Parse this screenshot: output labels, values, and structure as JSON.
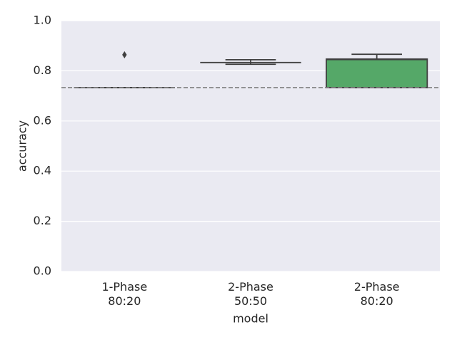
{
  "chart_data": {
    "type": "box",
    "x_label": "model",
    "y_label": "accuracy",
    "categories": [
      [
        "1-Phase",
        "80:20"
      ],
      [
        "2-Phase",
        "50:50"
      ],
      [
        "2-Phase",
        "80:20"
      ]
    ],
    "colors": [
      "#4c72b0",
      "#dd8452",
      "#55a868"
    ],
    "boxes": [
      {
        "whislo": 0.733,
        "q1": 0.733,
        "med": 0.733,
        "q3": 0.733,
        "whishi": 0.733,
        "fliers": [
          0.864
        ]
      },
      {
        "whislo": 0.826,
        "q1": 0.833,
        "med": 0.833,
        "q3": 0.833,
        "whishi": 0.844,
        "fliers": []
      },
      {
        "whislo": 0.733,
        "q1": 0.733,
        "med": 0.845,
        "q3": 0.847,
        "whishi": 0.866,
        "fliers": []
      }
    ],
    "reference_line": 0.733,
    "ylim": [
      0,
      1
    ],
    "yticks": [
      {
        "value": 0,
        "label": "0.0"
      },
      {
        "value": 0.2,
        "label": "0.2"
      },
      {
        "value": 0.4,
        "label": "0.4"
      },
      {
        "value": 0.6,
        "label": "0.6"
      },
      {
        "value": 0.8,
        "label": "0.8"
      },
      {
        "value": 1,
        "label": "1.0"
      }
    ],
    "grid": true
  }
}
